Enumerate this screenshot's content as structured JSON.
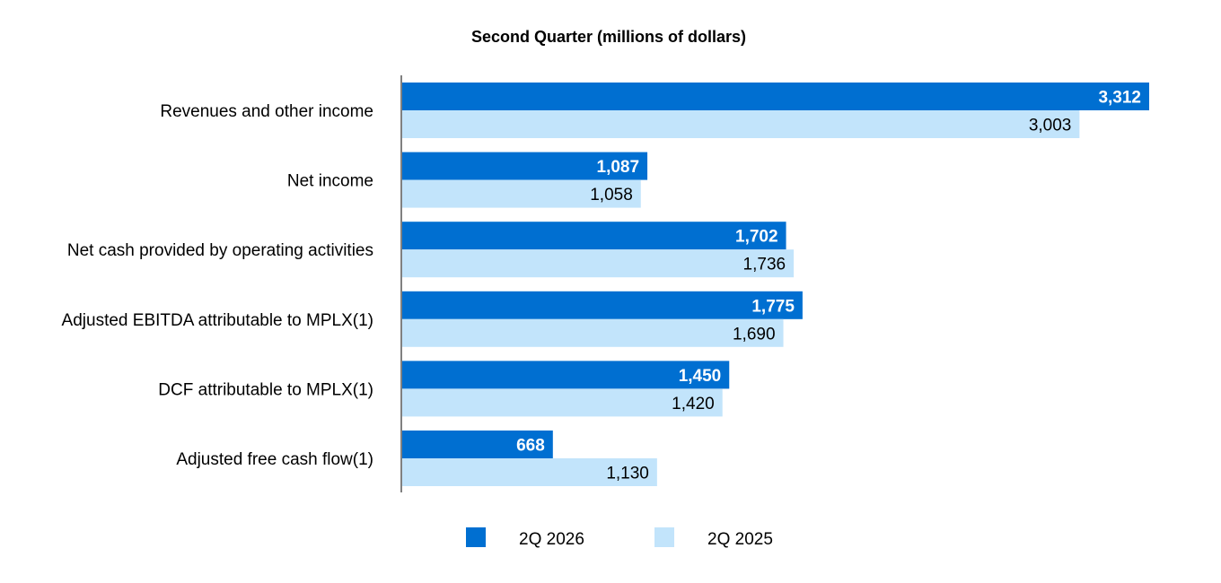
{
  "chart_data": {
    "type": "bar",
    "orientation": "horizontal",
    "title": "Second Quarter (millions of dollars)",
    "categories": [
      "Revenues and other income",
      "Net income",
      "Net cash provided by operating activities",
      "Adjusted EBITDA attributable to MPLX(1)",
      "DCF attributable to MPLX(1)",
      "Adjusted free cash flow(1)"
    ],
    "series": [
      {
        "name": "2Q 2026",
        "color": "#006fd1",
        "values": [
          3312,
          1087,
          1702,
          1775,
          1450,
          668
        ],
        "labels": [
          "3,312",
          "1,087",
          "1,702",
          "1,775",
          "1,450",
          "668"
        ]
      },
      {
        "name": "2Q 2025",
        "color": "#c2e4fb",
        "values": [
          3003,
          1058,
          1736,
          1690,
          1420,
          1130
        ],
        "labels": [
          "3,003",
          "1,058",
          "1,736",
          "1,690",
          "1,420",
          "1,130"
        ]
      }
    ],
    "xlim": [
      0,
      3312
    ],
    "grid": false,
    "legend_position": "bottom"
  }
}
